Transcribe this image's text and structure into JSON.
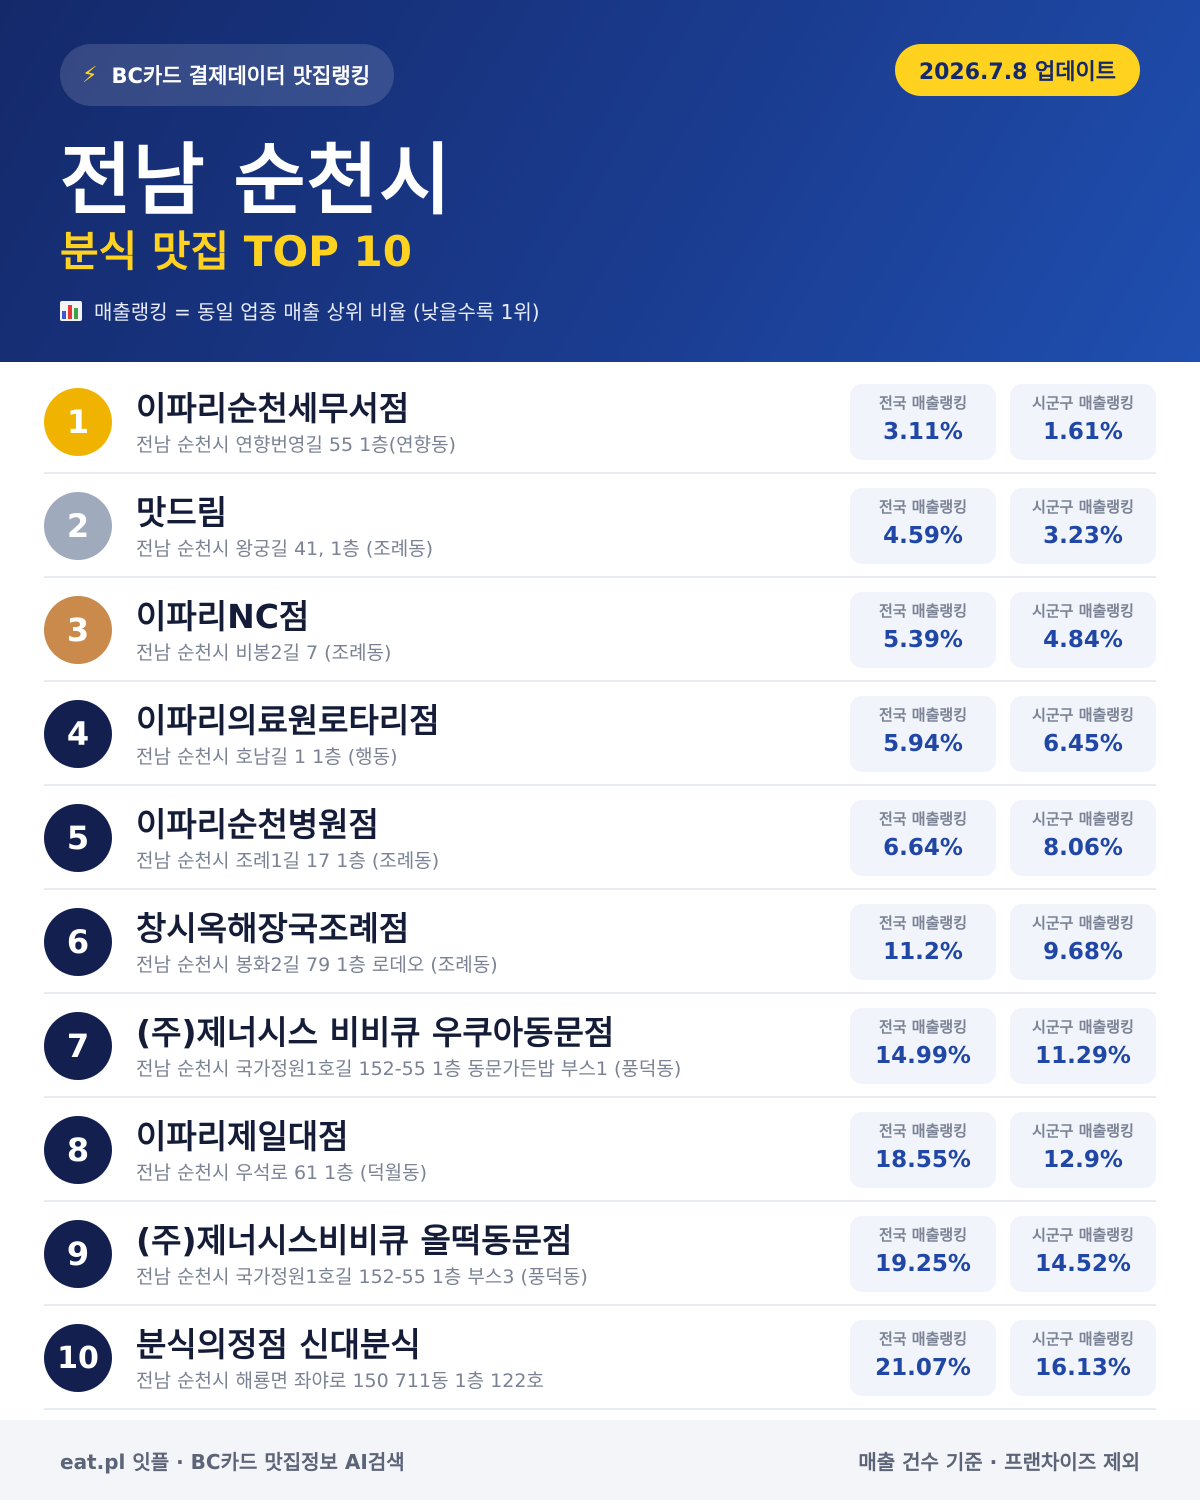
{
  "header": {
    "source_label": "BC카드 결제데이터 맛집랭킹",
    "source_icon": "lightning-bolt-icon",
    "update_label": "2026.7.8 업데이트",
    "city_title": "전남 순천시",
    "subtitle": "분식 맛집 TOP 10",
    "legend_icon": "bar-chart-icon",
    "legend_text": "매출랭킹 = 동일 업종 매출 상위 비율 (낮을수록 1위)"
  },
  "colors": {
    "header_dark": "#14296a",
    "header_light": "#1f4fb0",
    "accent_yellow": "#ffd21f",
    "value_blue": "#2047a6",
    "rank_gold": "#f0b400",
    "rank_silver": "#a0aabd",
    "rank_bronze": "#c98a4b",
    "rank_default": "#13204f"
  },
  "stat_labels": {
    "national": "전국 매출랭킹",
    "local": "시군구 매출랭킹"
  },
  "restaurants": [
    {
      "rank": "1",
      "medal": "gold",
      "name": "이파리순천세무서점",
      "address": "전남 순천시 연향번영길 55 1층(연향동)",
      "national": "3.11%",
      "local": "1.61%"
    },
    {
      "rank": "2",
      "medal": "silver",
      "name": "맛드림",
      "address": "전남 순천시 왕궁길 41, 1층 (조례동)",
      "national": "4.59%",
      "local": "3.23%"
    },
    {
      "rank": "3",
      "medal": "bronze",
      "name": "이파리NC점",
      "address": "전남 순천시 비봉2길 7 (조례동)",
      "national": "5.39%",
      "local": "4.84%"
    },
    {
      "rank": "4",
      "medal": "default",
      "name": "이파리의료원로타리점",
      "address": "전남 순천시 호남길 1 1층 (행동)",
      "national": "5.94%",
      "local": "6.45%"
    },
    {
      "rank": "5",
      "medal": "default",
      "name": "이파리순천병원점",
      "address": "전남 순천시 조례1길 17 1층 (조례동)",
      "national": "6.64%",
      "local": "8.06%"
    },
    {
      "rank": "6",
      "medal": "default",
      "name": "창시옥해장국조례점",
      "address": "전남 순천시 봉화2길 79 1층 로데오 (조례동)",
      "national": "11.2%",
      "local": "9.68%"
    },
    {
      "rank": "7",
      "medal": "default",
      "name": "(주)제너시스 비비큐 우쿠아동문점",
      "address": "전남 순천시 국가정원1호길 152-55 1층 동문가든밥 부스1 (풍덕동)",
      "national": "14.99%",
      "local": "11.29%"
    },
    {
      "rank": "8",
      "medal": "default",
      "name": "이파리제일대점",
      "address": "전남 순천시 우석로 61 1층 (덕월동)",
      "national": "18.55%",
      "local": "12.9%"
    },
    {
      "rank": "9",
      "medal": "default",
      "name": "(주)제너시스비비큐 올떡동문점",
      "address": "전남 순천시 국가정원1호길 152-55 1층 부스3 (풍덕동)",
      "national": "19.25%",
      "local": "14.52%"
    },
    {
      "rank": "10",
      "medal": "default",
      "name": "분식의정점 신대분식",
      "address": "전남 순천시 해룡면 좌야로 150 711동 1층 122호",
      "national": "21.07%",
      "local": "16.13%"
    }
  ],
  "footer": {
    "left": "eat.pl 잇플 · BC카드 맛집정보 AI검색",
    "right": "매출 건수 기준 · 프랜차이즈 제외"
  }
}
